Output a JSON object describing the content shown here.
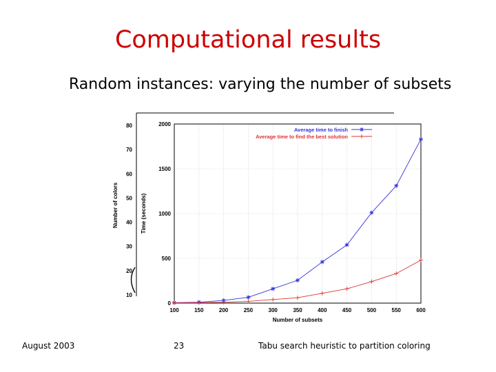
{
  "slide": {
    "title": "Computational results",
    "subtitle": "Random instances: varying the number of subsets",
    "footer_left": "August 2003",
    "page_number": "23",
    "footer_right": "Tabu search heuristic to partition coloring"
  },
  "colors": {
    "title": "#cc0000",
    "series_finish": "#3333dd",
    "series_best": "#dd3333"
  },
  "chart_data": [
    {
      "type": "line",
      "xlabel": "Number of subsets",
      "ylabel": "Time (seconds)",
      "xlim": [
        100,
        600
      ],
      "ylim": [
        0,
        2000
      ],
      "x_ticks": [
        100,
        150,
        200,
        250,
        300,
        350,
        400,
        450,
        500,
        550,
        600
      ],
      "y_ticks": [
        0,
        500,
        1000,
        1500,
        2000
      ],
      "grid": true,
      "legend_position": "top-right",
      "x": [
        100,
        150,
        200,
        250,
        300,
        350,
        400,
        450,
        500,
        550,
        600
      ],
      "series": [
        {
          "name": "Average time to finish",
          "marker": "asterisk",
          "values": [
            5,
            10,
            30,
            65,
            160,
            255,
            460,
            650,
            1010,
            1310,
            1830
          ]
        },
        {
          "name": "Average time to find the best solution",
          "marker": "plus",
          "values": [
            2,
            4,
            10,
            20,
            40,
            60,
            110,
            160,
            240,
            330,
            480
          ]
        }
      ]
    },
    {
      "type": "line",
      "note_partial": true,
      "ylabel": "Number of colors",
      "ylim": [
        10,
        80
      ],
      "y_ticks": [
        10,
        20,
        30,
        40,
        50,
        60,
        70,
        80
      ],
      "grid": false
    }
  ]
}
